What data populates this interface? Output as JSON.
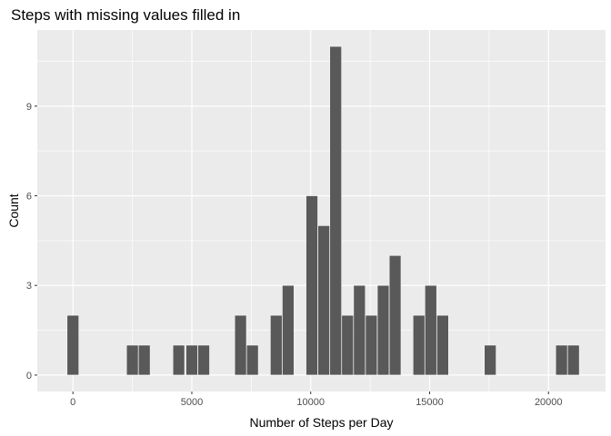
{
  "chart_data": {
    "type": "bar",
    "title": "Steps with missing values filled in",
    "xlabel": "Number of Steps per Day",
    "ylabel": "Count",
    "xlim": [
      -1500,
      22400
    ],
    "ylim": [
      -0.55,
      11.55
    ],
    "x_ticks": [
      0,
      5000,
      10000,
      15000,
      20000
    ],
    "x_tick_labels": [
      "0",
      "5000",
      "10000",
      "15000",
      "20000"
    ],
    "y_ticks": [
      0,
      3,
      6,
      9
    ],
    "y_tick_labels": [
      "0",
      "3",
      "6",
      "9"
    ],
    "bin_width": 490,
    "bars": [
      {
        "x": 0,
        "count": 2
      },
      {
        "x": 2500,
        "count": 1
      },
      {
        "x": 3000,
        "count": 1
      },
      {
        "x": 4450,
        "count": 1
      },
      {
        "x": 5000,
        "count": 1
      },
      {
        "x": 5500,
        "count": 1
      },
      {
        "x": 7050,
        "count": 2
      },
      {
        "x": 7550,
        "count": 1
      },
      {
        "x": 8550,
        "count": 2
      },
      {
        "x": 9050,
        "count": 3
      },
      {
        "x": 10050,
        "count": 6
      },
      {
        "x": 10550,
        "count": 5
      },
      {
        "x": 11050,
        "count": 11
      },
      {
        "x": 11550,
        "count": 2
      },
      {
        "x": 12050,
        "count": 3
      },
      {
        "x": 12550,
        "count": 2
      },
      {
        "x": 13050,
        "count": 3
      },
      {
        "x": 13550,
        "count": 4
      },
      {
        "x": 14550,
        "count": 2
      },
      {
        "x": 15050,
        "count": 3
      },
      {
        "x": 15550,
        "count": 2
      },
      {
        "x": 17550,
        "count": 1
      },
      {
        "x": 20550,
        "count": 1
      },
      {
        "x": 21050,
        "count": 1
      }
    ],
    "grid": true,
    "colors": {
      "panel": "#ebebeb",
      "grid_major": "#ffffff",
      "bar_fill": "#595959",
      "bar_outline": "#ffffff"
    }
  }
}
